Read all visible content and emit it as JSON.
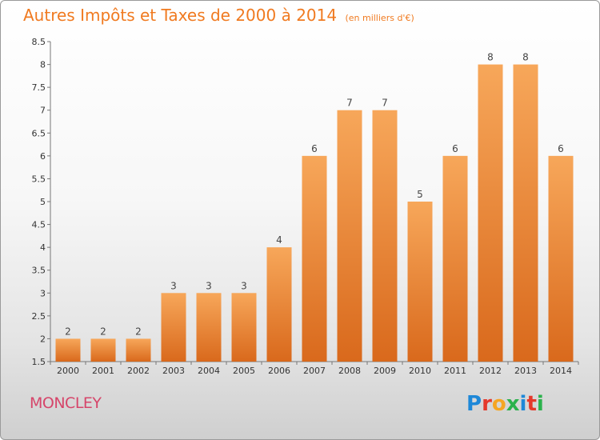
{
  "title": "Autres Impôts et Taxes de 2000 à 2014",
  "title_unit": "(en milliers d'€)",
  "commune": "MONCLEY",
  "logo_text": "Proxiti",
  "colors": {
    "accent": "#f07a20",
    "bar_top": "#f7a75a",
    "bar_bottom": "#d9691c",
    "commune": "#d6456a",
    "logo": [
      "#1e88d8",
      "#e5392b",
      "#f5a623",
      "#2bb24c",
      "#1e88d8",
      "#e5392b",
      "#2bb24c"
    ]
  },
  "chart_data": {
    "type": "bar",
    "title": "Autres Impôts et Taxes de 2000 à 2014",
    "subtitle": "(en milliers d'€)",
    "categories": [
      "2000",
      "2001",
      "2002",
      "2003",
      "2004",
      "2005",
      "2006",
      "2007",
      "2008",
      "2009",
      "2010",
      "2011",
      "2012",
      "2013",
      "2014"
    ],
    "values": [
      2,
      2,
      2,
      3,
      3,
      3,
      4,
      6,
      7,
      7,
      5,
      6,
      8,
      8,
      6
    ],
    "data_labels": [
      "2",
      "2",
      "2",
      "3",
      "3",
      "3",
      "4",
      "6",
      "7",
      "7",
      "5",
      "6",
      "8",
      "8",
      "6"
    ],
    "ylim": [
      1.5,
      8.5
    ],
    "yticks": [
      "1.5",
      "2",
      "2.5",
      "3",
      "3.5",
      "4",
      "4.5",
      "5",
      "5.5",
      "6",
      "6.5",
      "7",
      "7.5",
      "8",
      "8.5"
    ],
    "grid": false,
    "xlabel": "",
    "ylabel": ""
  }
}
